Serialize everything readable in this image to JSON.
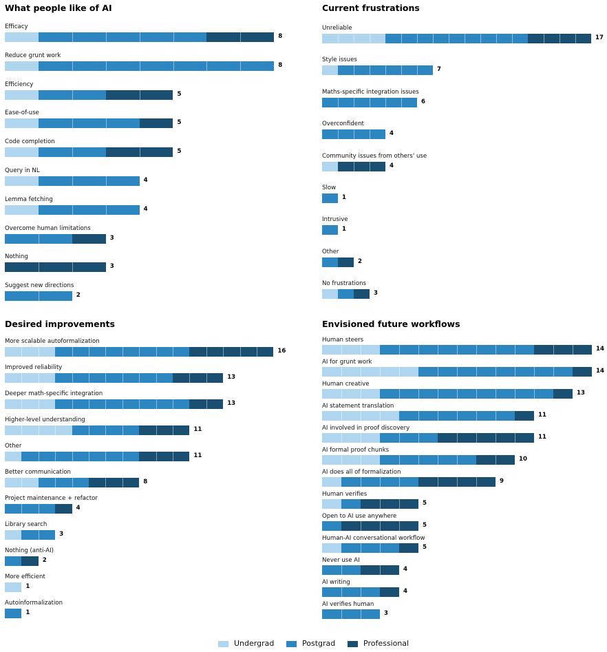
{
  "colors": {
    "undergrad": "#b0d5ee",
    "postgrad": "#2e86c1",
    "professional": "#1b4f72"
  },
  "legend": [
    {
      "name": "Undergrad",
      "color_key": "undergrad"
    },
    {
      "name": "Postgrad",
      "color_key": "postgrad"
    },
    {
      "name": "Professional",
      "color_key": "professional"
    }
  ],
  "chart_data": [
    {
      "type": "bar",
      "title": "What people like of AI",
      "stacked": true,
      "orientation": "horizontal",
      "categories": [
        "Efficacy",
        "Reduce grunt work",
        "Efficiency",
        "Ease-of-use",
        "Code completion",
        "Query in NL",
        "Lemma fetching",
        "Overcome human limitations",
        "Nothing",
        "Suggest new directions"
      ],
      "series": [
        {
          "name": "Undergrad",
          "values": [
            1,
            1,
            1,
            1,
            1,
            1,
            1,
            0,
            0,
            0
          ]
        },
        {
          "name": "Postgrad",
          "values": [
            5,
            7,
            2,
            3,
            2,
            3,
            3,
            2,
            0,
            2
          ]
        },
        {
          "name": "Professional",
          "values": [
            2,
            0,
            2,
            1,
            2,
            0,
            0,
            1,
            3,
            0
          ]
        }
      ],
      "totals": [
        8,
        8,
        5,
        5,
        5,
        4,
        4,
        3,
        3,
        2
      ]
    },
    {
      "type": "bar",
      "title": "Current frustrations",
      "stacked": true,
      "orientation": "horizontal",
      "categories": [
        "Unreliable",
        "Style issues",
        "Maths-specific integration issues",
        "Overconfident",
        "Community issues from others' use",
        "Slow",
        "Intrusive",
        "Other",
        "No frustrations"
      ],
      "series": [
        {
          "name": "Undergrad",
          "values": [
            4,
            1,
            0,
            0,
            1,
            0,
            0,
            0,
            1
          ]
        },
        {
          "name": "Postgrad",
          "values": [
            9,
            6,
            6,
            4,
            0,
            1,
            1,
            1,
            1
          ]
        },
        {
          "name": "Professional",
          "values": [
            4,
            0,
            0,
            0,
            3,
            0,
            0,
            1,
            1
          ]
        }
      ],
      "totals": [
        17,
        7,
        6,
        4,
        4,
        1,
        1,
        2,
        3
      ]
    },
    {
      "type": "bar",
      "title": "Desired improvements",
      "stacked": true,
      "orientation": "horizontal",
      "categories": [
        "More scalable autoformalization",
        "Improved reliability",
        "Deeper math-specific integration",
        "Higher-level understanding",
        "Other",
        "Better communication",
        "Project maintenance + refactor",
        "Library search",
        "Nothing (anti-AI)",
        "More efficient",
        "Autoinformalization"
      ],
      "series": [
        {
          "name": "Undergrad",
          "values": [
            3,
            3,
            3,
            4,
            1,
            2,
            0,
            1,
            0,
            1,
            0
          ]
        },
        {
          "name": "Postgrad",
          "values": [
            8,
            7,
            8,
            4,
            7,
            3,
            3,
            2,
            1,
            0,
            1
          ]
        },
        {
          "name": "Professional",
          "values": [
            5,
            3,
            2,
            3,
            3,
            3,
            1,
            0,
            1,
            0,
            0
          ]
        }
      ],
      "totals": [
        16,
        13,
        13,
        11,
        11,
        8,
        4,
        3,
        2,
        1,
        1
      ]
    },
    {
      "type": "bar",
      "title": "Envisioned future workflows",
      "stacked": true,
      "orientation": "horizontal",
      "categories": [
        "Human steers",
        "AI for grunt work",
        "Human creative",
        "AI statement translation",
        "AI involved in proof discovery",
        "AI formal proof chunks",
        "AI does all of formalization",
        "Human verifies",
        "Open to AI use anywhere",
        "Human-AI conversational workflow",
        "Never use AI",
        "AI writing",
        "AI verifies human"
      ],
      "series": [
        {
          "name": "Undergrad",
          "values": [
            3,
            5,
            3,
            4,
            3,
            3,
            1,
            1,
            0,
            1,
            0,
            0,
            0
          ]
        },
        {
          "name": "Postgrad",
          "values": [
            8,
            8,
            9,
            6,
            3,
            5,
            4,
            1,
            1,
            3,
            2,
            3,
            3
          ]
        },
        {
          "name": "Professional",
          "values": [
            3,
            1,
            1,
            1,
            5,
            2,
            4,
            3,
            4,
            1,
            2,
            1,
            0
          ]
        }
      ],
      "totals": [
        14,
        14,
        13,
        11,
        11,
        10,
        9,
        5,
        5,
        5,
        4,
        4,
        3
      ]
    }
  ]
}
